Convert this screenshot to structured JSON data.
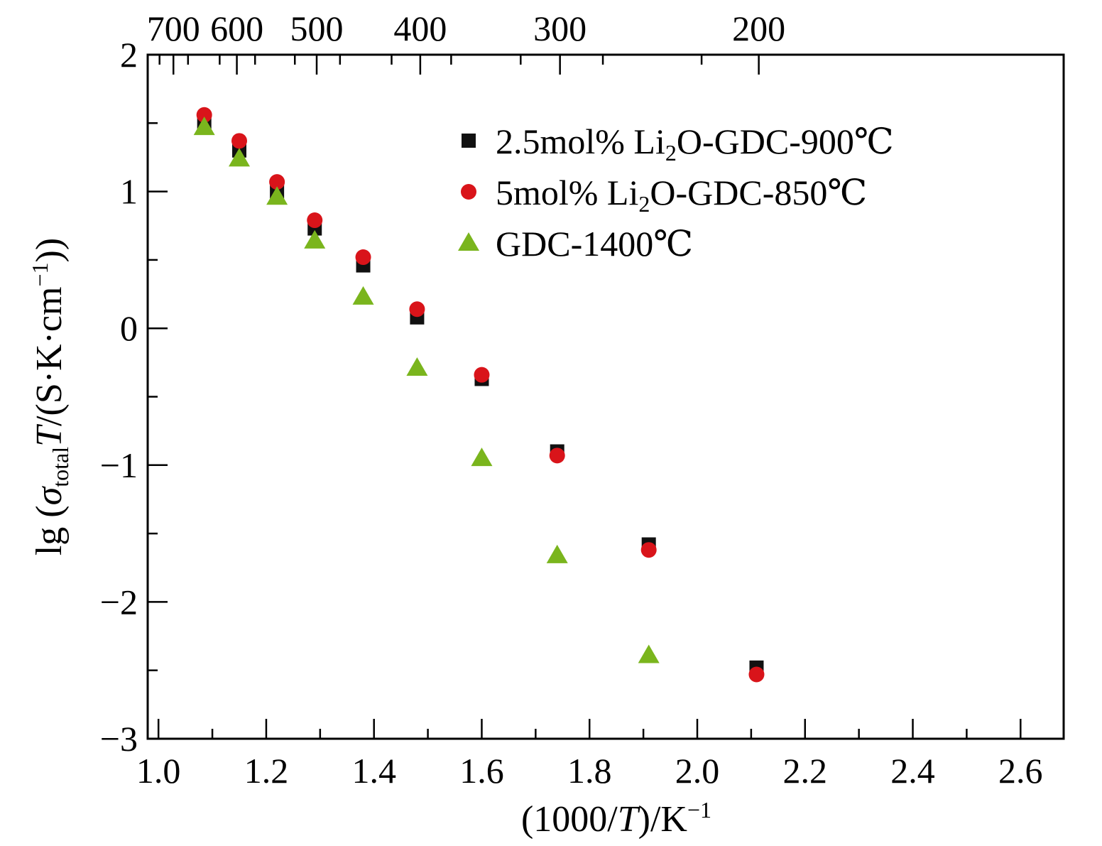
{
  "chart_data": {
    "type": "scatter",
    "xlabel": {
      "pre": "(1000/",
      "italic": "T",
      "post": ")/K",
      "sup": "−1"
    },
    "ylabel": {
      "pre": "lg (",
      "sigma": "σ",
      "sub": "total",
      "italic": "T",
      "mid": "/(S·K·cm",
      "sup": "−1",
      "post": "))"
    },
    "xlim": [
      0.98,
      2.68
    ],
    "ylim": [
      -3,
      2
    ],
    "x_ticks": [
      1.0,
      1.2,
      1.4,
      1.6,
      1.8,
      2.0,
      2.2,
      2.4,
      2.6
    ],
    "x_tick_labels": [
      "1.0",
      "1.2",
      "1.4",
      "1.6",
      "1.8",
      "2.0",
      "2.2",
      "2.4",
      "2.6"
    ],
    "y_ticks": [
      2,
      1,
      0,
      -1,
      -2,
      -3
    ],
    "y_tick_labels": [
      "2",
      "1",
      "0",
      "−1",
      "−2",
      "−3"
    ],
    "top_axis": {
      "temperatures": [
        700,
        600,
        500,
        400,
        300,
        200
      ],
      "tick_labels": [
        "700",
        "600",
        "500",
        "400",
        "300",
        "200"
      ]
    },
    "legend_position": "top-right",
    "series": [
      {
        "label_parts": [
          "2.5mol% Li",
          "2",
          "O-GDC-900℃"
        ],
        "marker": "square",
        "color": "#111111",
        "x": [
          1.085,
          1.15,
          1.22,
          1.29,
          1.38,
          1.48,
          1.6,
          1.74,
          1.91,
          2.11
        ],
        "y": [
          1.5,
          1.3,
          1.0,
          0.73,
          0.46,
          0.08,
          -0.37,
          -0.9,
          -1.58,
          -2.48
        ]
      },
      {
        "label_parts": [
          "5mol% Li",
          "2",
          "O-GDC-850℃"
        ],
        "marker": "circle",
        "color": "#d9141a",
        "x": [
          1.085,
          1.15,
          1.22,
          1.29,
          1.38,
          1.48,
          1.6,
          1.74,
          1.91,
          2.11
        ],
        "y": [
          1.56,
          1.37,
          1.07,
          0.79,
          0.52,
          0.14,
          -0.34,
          -0.93,
          -1.62,
          -2.53
        ]
      },
      {
        "label_parts": [
          "GDC-1400℃"
        ],
        "marker": "triangle",
        "color": "#7ab51d",
        "x": [
          1.085,
          1.15,
          1.22,
          1.29,
          1.38,
          1.48,
          1.6,
          1.74,
          1.91
        ],
        "y": [
          1.47,
          1.24,
          0.96,
          0.64,
          0.23,
          -0.29,
          -0.95,
          -1.66,
          -2.39
        ]
      }
    ]
  }
}
